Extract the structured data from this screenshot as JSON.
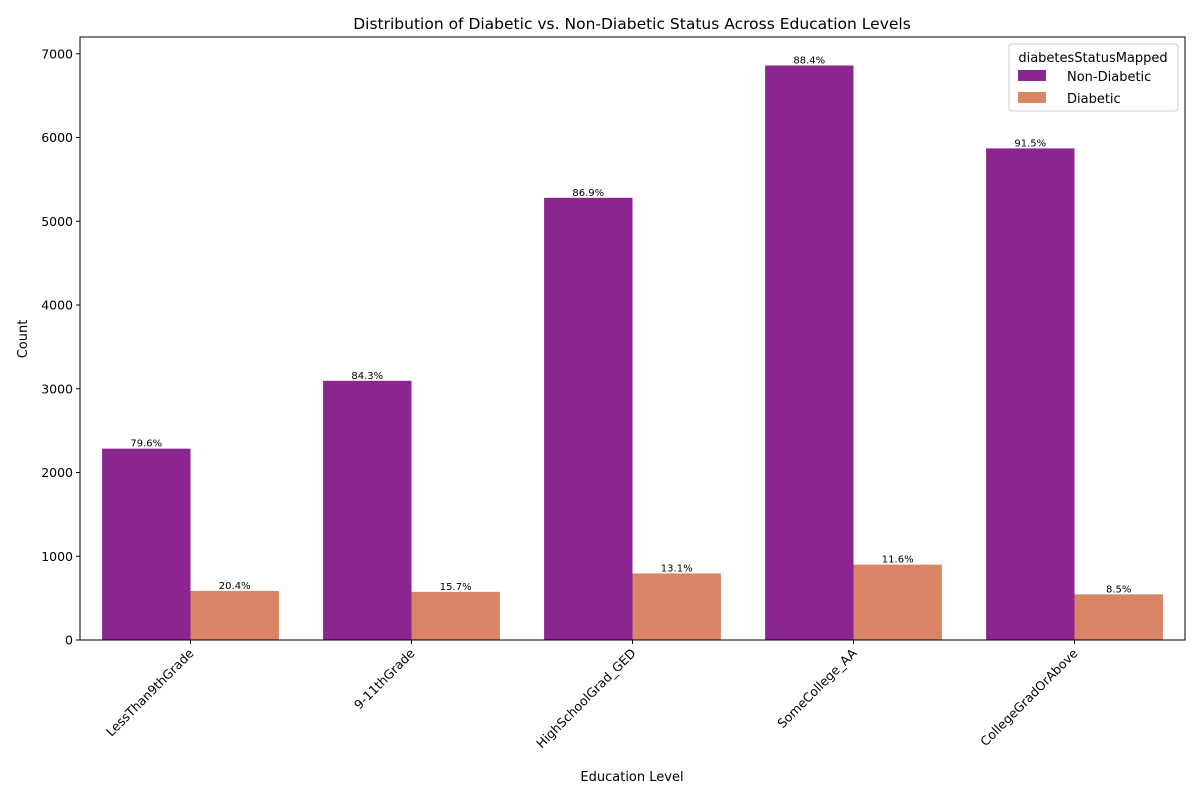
{
  "chart_data": {
    "type": "bar",
    "title": "Distribution of Diabetic vs. Non-Diabetic Status Across Education Levels",
    "xlabel": "Education Level",
    "ylabel": "Count",
    "ylim": [
      0,
      7200
    ],
    "yticks": [
      0,
      1000,
      2000,
      3000,
      4000,
      5000,
      6000,
      7000
    ],
    "grid": false,
    "legend_title": "diabetesStatusMapped",
    "legend_position": "top-right",
    "categories": [
      "LessThan9thGrade",
      "9-11thGrade",
      "HighSchoolGrad_GED",
      "SomeCollege_AA",
      "CollegeGradOrAbove"
    ],
    "series": [
      {
        "name": "Non-Diabetic",
        "color": "#8b2590",
        "values": [
          2285,
          3095,
          5280,
          6860,
          5870
        ],
        "labels": [
          "79.6%",
          "84.3%",
          "86.9%",
          "88.4%",
          "91.5%"
        ]
      },
      {
        "name": "Diabetic",
        "color": "#d98464",
        "values": [
          585,
          575,
          795,
          900,
          545
        ],
        "labels": [
          "20.4%",
          "15.7%",
          "13.1%",
          "11.6%",
          "8.5%"
        ]
      }
    ]
  }
}
